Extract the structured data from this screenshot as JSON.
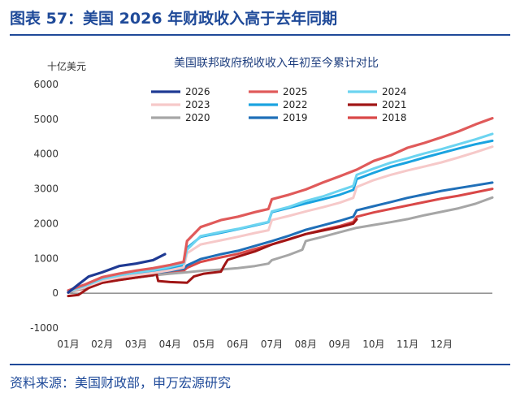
{
  "figure": {
    "title": "图表 57：美国 2026 年财政收入高于去年同期",
    "source": "资料来源：美国财政部，申万宏源研究"
  },
  "chart_data": {
    "type": "line",
    "title": "美国联邦政府税收收入年初至今累计对比",
    "ylabel": "十亿美元",
    "ylim": [
      -1000,
      6000
    ],
    "yticks": [
      -1000,
      0,
      1000,
      2000,
      3000,
      4000,
      5000,
      6000
    ],
    "xlim": [
      0,
      12.5
    ],
    "xticks": [
      {
        "pos": 0,
        "label": "01月"
      },
      {
        "pos": 1,
        "label": "02月"
      },
      {
        "pos": 2,
        "label": "03月"
      },
      {
        "pos": 3,
        "label": "04月"
      },
      {
        "pos": 4,
        "label": "05月"
      },
      {
        "pos": 5,
        "label": "06月"
      },
      {
        "pos": 6,
        "label": "07月"
      },
      {
        "pos": 7,
        "label": "08月"
      },
      {
        "pos": 8,
        "label": "09月"
      },
      {
        "pos": 9,
        "label": "10月"
      },
      {
        "pos": 10,
        "label": "11月"
      },
      {
        "pos": 11,
        "label": "12月"
      }
    ],
    "legend_position": "top",
    "series": [
      {
        "name": "2026",
        "color": "#1f3a93",
        "width": 3.2,
        "x": [
          0,
          0.3,
          0.6,
          1.0,
          1.5,
          2.0,
          2.5,
          2.85
        ],
        "y": [
          20,
          250,
          480,
          600,
          780,
          850,
          950,
          1120
        ]
      },
      {
        "name": "2025",
        "color": "#e05a5a",
        "width": 3.2,
        "x": [
          0,
          0.5,
          1.0,
          1.5,
          2.0,
          2.5,
          3.0,
          3.4,
          3.5,
          3.9,
          4.5,
          5.0,
          5.5,
          5.9,
          6.0,
          6.5,
          7.0,
          7.5,
          8.0,
          8.5,
          9.0,
          9.5,
          10.0,
          10.5,
          11.0,
          11.5,
          12.0,
          12.5
        ],
        "y": [
          80,
          250,
          460,
          560,
          650,
          720,
          810,
          900,
          1500,
          1900,
          2100,
          2200,
          2330,
          2420,
          2700,
          2830,
          2980,
          3180,
          3360,
          3550,
          3800,
          3960,
          4180,
          4320,
          4480,
          4650,
          4850,
          5030
        ]
      },
      {
        "name": "2024",
        "color": "#6cd4f0",
        "width": 3.0,
        "x": [
          0,
          0.5,
          1.0,
          1.5,
          2.0,
          2.5,
          3.0,
          3.4,
          3.5,
          3.9,
          4.5,
          5.0,
          5.5,
          5.9,
          6.0,
          6.5,
          7.0,
          7.5,
          8.0,
          8.4,
          8.5,
          9.0,
          9.5,
          10.0,
          10.5,
          11.0,
          11.5,
          12.0,
          12.5
        ],
        "y": [
          50,
          210,
          410,
          510,
          600,
          660,
          760,
          850,
          1250,
          1640,
          1760,
          1850,
          1960,
          2050,
          2350,
          2480,
          2650,
          2780,
          2950,
          3080,
          3400,
          3580,
          3750,
          3880,
          4020,
          4140,
          4280,
          4420,
          4580
        ]
      },
      {
        "name": "2023",
        "color": "#f6c9c9",
        "width": 3.0,
        "x": [
          0,
          0.5,
          1.0,
          1.5,
          2.0,
          2.5,
          3.0,
          3.4,
          3.5,
          3.9,
          4.5,
          5.0,
          5.5,
          5.9,
          6.0,
          6.5,
          7.0,
          7.5,
          8.0,
          8.4,
          8.5,
          9.0,
          9.5,
          10.0,
          10.5,
          11.0,
          11.5,
          12.0,
          12.5
        ],
        "y": [
          40,
          180,
          360,
          450,
          520,
          580,
          660,
          740,
          1150,
          1400,
          1520,
          1620,
          1730,
          1810,
          2100,
          2220,
          2350,
          2470,
          2600,
          2740,
          3050,
          3250,
          3400,
          3530,
          3640,
          3760,
          3900,
          4050,
          4210
        ]
      },
      {
        "name": "2022",
        "color": "#1aa3e0",
        "width": 3.0,
        "x": [
          0,
          0.5,
          1.0,
          1.5,
          2.0,
          2.5,
          3.0,
          3.4,
          3.5,
          3.9,
          4.5,
          5.0,
          5.5,
          5.9,
          6.0,
          6.5,
          7.0,
          7.5,
          8.0,
          8.4,
          8.5,
          9.0,
          9.5,
          10.0,
          10.5,
          11.0,
          11.5,
          12.0,
          12.5
        ],
        "y": [
          40,
          190,
          380,
          470,
          560,
          630,
          720,
          800,
          1300,
          1620,
          1740,
          1840,
          1950,
          2040,
          2330,
          2450,
          2580,
          2700,
          2830,
          2970,
          3280,
          3460,
          3630,
          3760,
          3900,
          4030,
          4160,
          4280,
          4380
        ]
      },
      {
        "name": "2021",
        "color": "#a01515",
        "width": 3.0,
        "x": [
          0,
          0.3,
          0.6,
          1.0,
          1.5,
          2.0,
          2.5,
          2.6,
          2.65,
          3.0,
          3.5,
          3.7,
          4.0,
          4.5,
          4.6,
          4.7,
          5.0,
          5.5,
          6.0,
          6.5,
          7.0,
          7.5,
          8.0,
          8.4,
          8.5
        ],
        "y": [
          -80,
          -50,
          150,
          300,
          380,
          450,
          520,
          560,
          350,
          320,
          300,
          480,
          560,
          620,
          800,
          960,
          1050,
          1200,
          1400,
          1550,
          1700,
          1800,
          1900,
          2000,
          2120
        ]
      },
      {
        "name": "2020",
        "color": "#a6a6a6",
        "width": 3.0,
        "x": [
          0,
          0.5,
          1.0,
          1.5,
          2.0,
          2.5,
          3.0,
          3.5,
          4.0,
          4.5,
          5.0,
          5.5,
          5.9,
          6.0,
          6.5,
          6.9,
          7.0,
          7.5,
          8.0,
          8.5,
          9.0,
          9.5,
          10.0,
          10.5,
          11.0,
          11.5,
          12.0,
          12.5
        ],
        "y": [
          20,
          160,
          320,
          400,
          450,
          510,
          560,
          600,
          650,
          680,
          720,
          780,
          850,
          950,
          1100,
          1250,
          1500,
          1620,
          1750,
          1880,
          1960,
          2040,
          2130,
          2240,
          2340,
          2440,
          2570,
          2750
        ]
      },
      {
        "name": "2019",
        "color": "#1f6fb8",
        "width": 3.0,
        "x": [
          0,
          0.5,
          1.0,
          1.5,
          2.0,
          2.5,
          3.0,
          3.4,
          3.5,
          3.9,
          4.5,
          5.0,
          5.5,
          6.0,
          6.5,
          7.0,
          7.5,
          8.0,
          8.4,
          8.5,
          9.0,
          9.5,
          10.0,
          10.5,
          11.0,
          11.5,
          12.0,
          12.5
        ],
        "y": [
          40,
          160,
          330,
          420,
          500,
          570,
          640,
          700,
          800,
          980,
          1120,
          1220,
          1360,
          1500,
          1650,
          1820,
          1950,
          2080,
          2200,
          2380,
          2500,
          2620,
          2740,
          2840,
          2940,
          3020,
          3100,
          3180
        ]
      },
      {
        "name": "2018",
        "color": "#d94848",
        "width": 3.0,
        "x": [
          0,
          0.5,
          1.0,
          1.5,
          2.0,
          2.5,
          3.0,
          3.4,
          3.5,
          3.9,
          4.5,
          5.0,
          5.5,
          6.0,
          6.5,
          7.0,
          7.5,
          8.0,
          8.4,
          8.5,
          9.0,
          9.5,
          10.0,
          10.5,
          11.0,
          11.5,
          12.0,
          12.5
        ],
        "y": [
          30,
          140,
          300,
          380,
          450,
          510,
          580,
          640,
          730,
          900,
          1030,
          1130,
          1270,
          1400,
          1540,
          1700,
          1820,
          1930,
          2050,
          2200,
          2320,
          2420,
          2520,
          2620,
          2720,
          2800,
          2900,
          3000
        ]
      }
    ]
  }
}
